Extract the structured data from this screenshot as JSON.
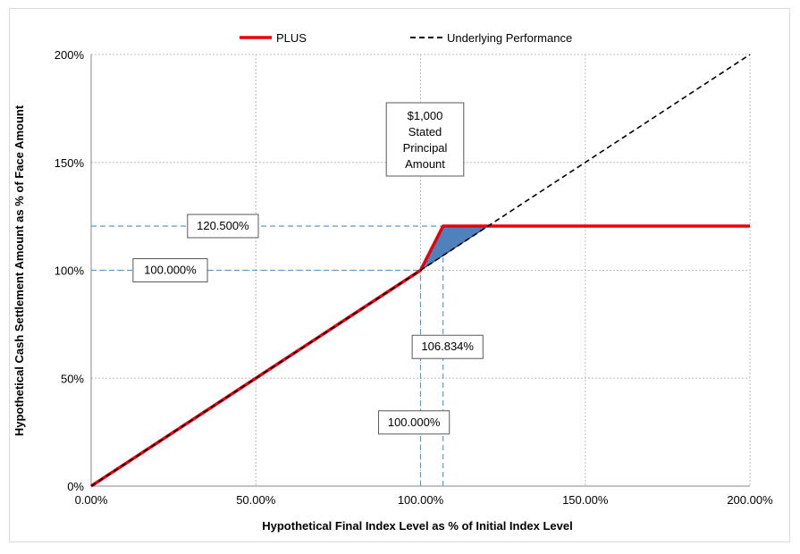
{
  "chart_data": {
    "type": "line",
    "title": "",
    "xlabel": "Hypothetical Final Index Level as % of Initial Index Level",
    "ylabel": "Hypothetical Cash Settlement Amount as % of Face Amount",
    "xlim": [
      0,
      200
    ],
    "ylim": [
      0,
      200
    ],
    "x_ticks": [
      0,
      50,
      100,
      150,
      200
    ],
    "x_tick_labels": [
      "0.00%",
      "50.00%",
      "100.00%",
      "150.00%",
      "200.00%"
    ],
    "y_ticks": [
      0,
      50,
      100,
      150,
      200
    ],
    "y_tick_labels": [
      "0%",
      "50%",
      "100%",
      "150%",
      "200%"
    ],
    "grid": true,
    "legend_position": "top-center",
    "series": [
      {
        "name": "PLUS",
        "color": "#e8000b",
        "style": "solid",
        "x": [
          0,
          100,
          106.834,
          200
        ],
        "y": [
          0,
          100,
          120.5,
          120.5
        ]
      },
      {
        "name": "Underlying Performance",
        "color": "#000000",
        "style": "dashed",
        "x": [
          0,
          200
        ],
        "y": [
          0,
          200
        ]
      }
    ],
    "shaded_region": {
      "color": "#4f81bd",
      "points": [
        [
          100,
          100
        ],
        [
          106.834,
          120.5
        ],
        [
          120.5,
          120.5
        ]
      ]
    },
    "reference_lines": [
      {
        "orientation": "horizontal",
        "value": 120.5,
        "to": 106.834
      },
      {
        "orientation": "horizontal",
        "value": 100,
        "to": 100
      },
      {
        "orientation": "vertical",
        "value": 100,
        "to": 100
      },
      {
        "orientation": "vertical",
        "value": 106.834,
        "to": 120.5
      }
    ],
    "annotations": [
      {
        "id": "stated-principal",
        "lines": [
          "$1,000",
          "Stated",
          "Principal",
          "Amount"
        ]
      },
      {
        "id": "cap-level",
        "text": "120.500%"
      },
      {
        "id": "principal-level",
        "text": "100.000%"
      },
      {
        "id": "cap-index-level",
        "text": "106.834%"
      },
      {
        "id": "initial-index-level",
        "text": "100.000%"
      }
    ]
  }
}
